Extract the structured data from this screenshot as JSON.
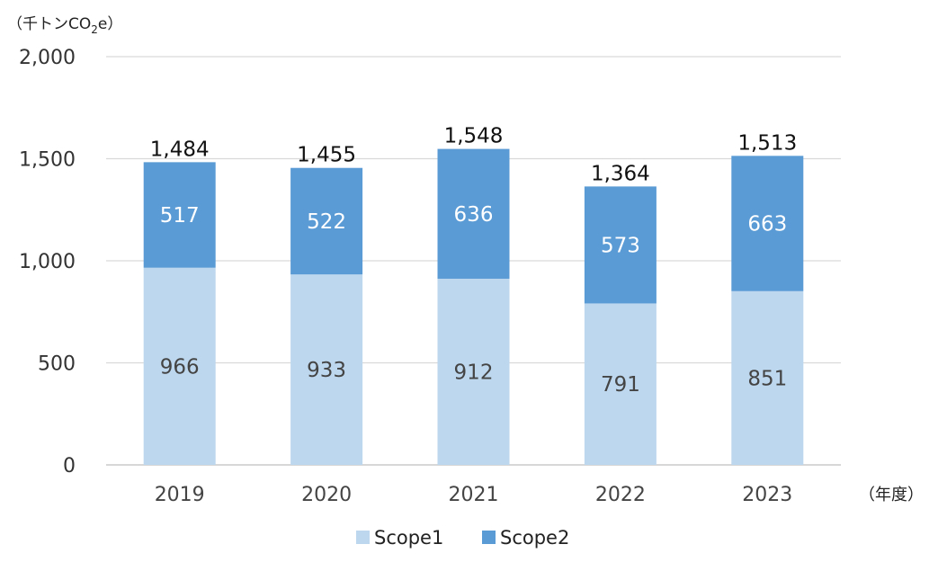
{
  "chart_data": {
    "type": "bar",
    "stacked": true,
    "unit_label": "（千トンCO",
    "unit_sub": "2",
    "unit_tail": "e）",
    "x_unit_label": "（年度）",
    "categories": [
      "2019",
      "2020",
      "2021",
      "2022",
      "2023"
    ],
    "series": [
      {
        "name": "Scope1",
        "values": [
          966,
          933,
          912,
          791,
          851
        ],
        "color": "#bdd7ee"
      },
      {
        "name": "Scope2",
        "values": [
          517,
          522,
          636,
          573,
          663
        ],
        "color": "#5b9bd5"
      }
    ],
    "totals": [
      "1,484",
      "1,455",
      "1,548",
      "1,364",
      "1,513"
    ],
    "segment_labels": [
      [
        "966",
        "933",
        "912",
        "791",
        "851"
      ],
      [
        "517",
        "522",
        "636",
        "573",
        "663"
      ]
    ],
    "yticks": [
      "0",
      "500",
      "1,000",
      "1,500",
      "2,000"
    ],
    "ylim": [
      0,
      2000
    ],
    "grid": true,
    "legend": "bottom"
  }
}
